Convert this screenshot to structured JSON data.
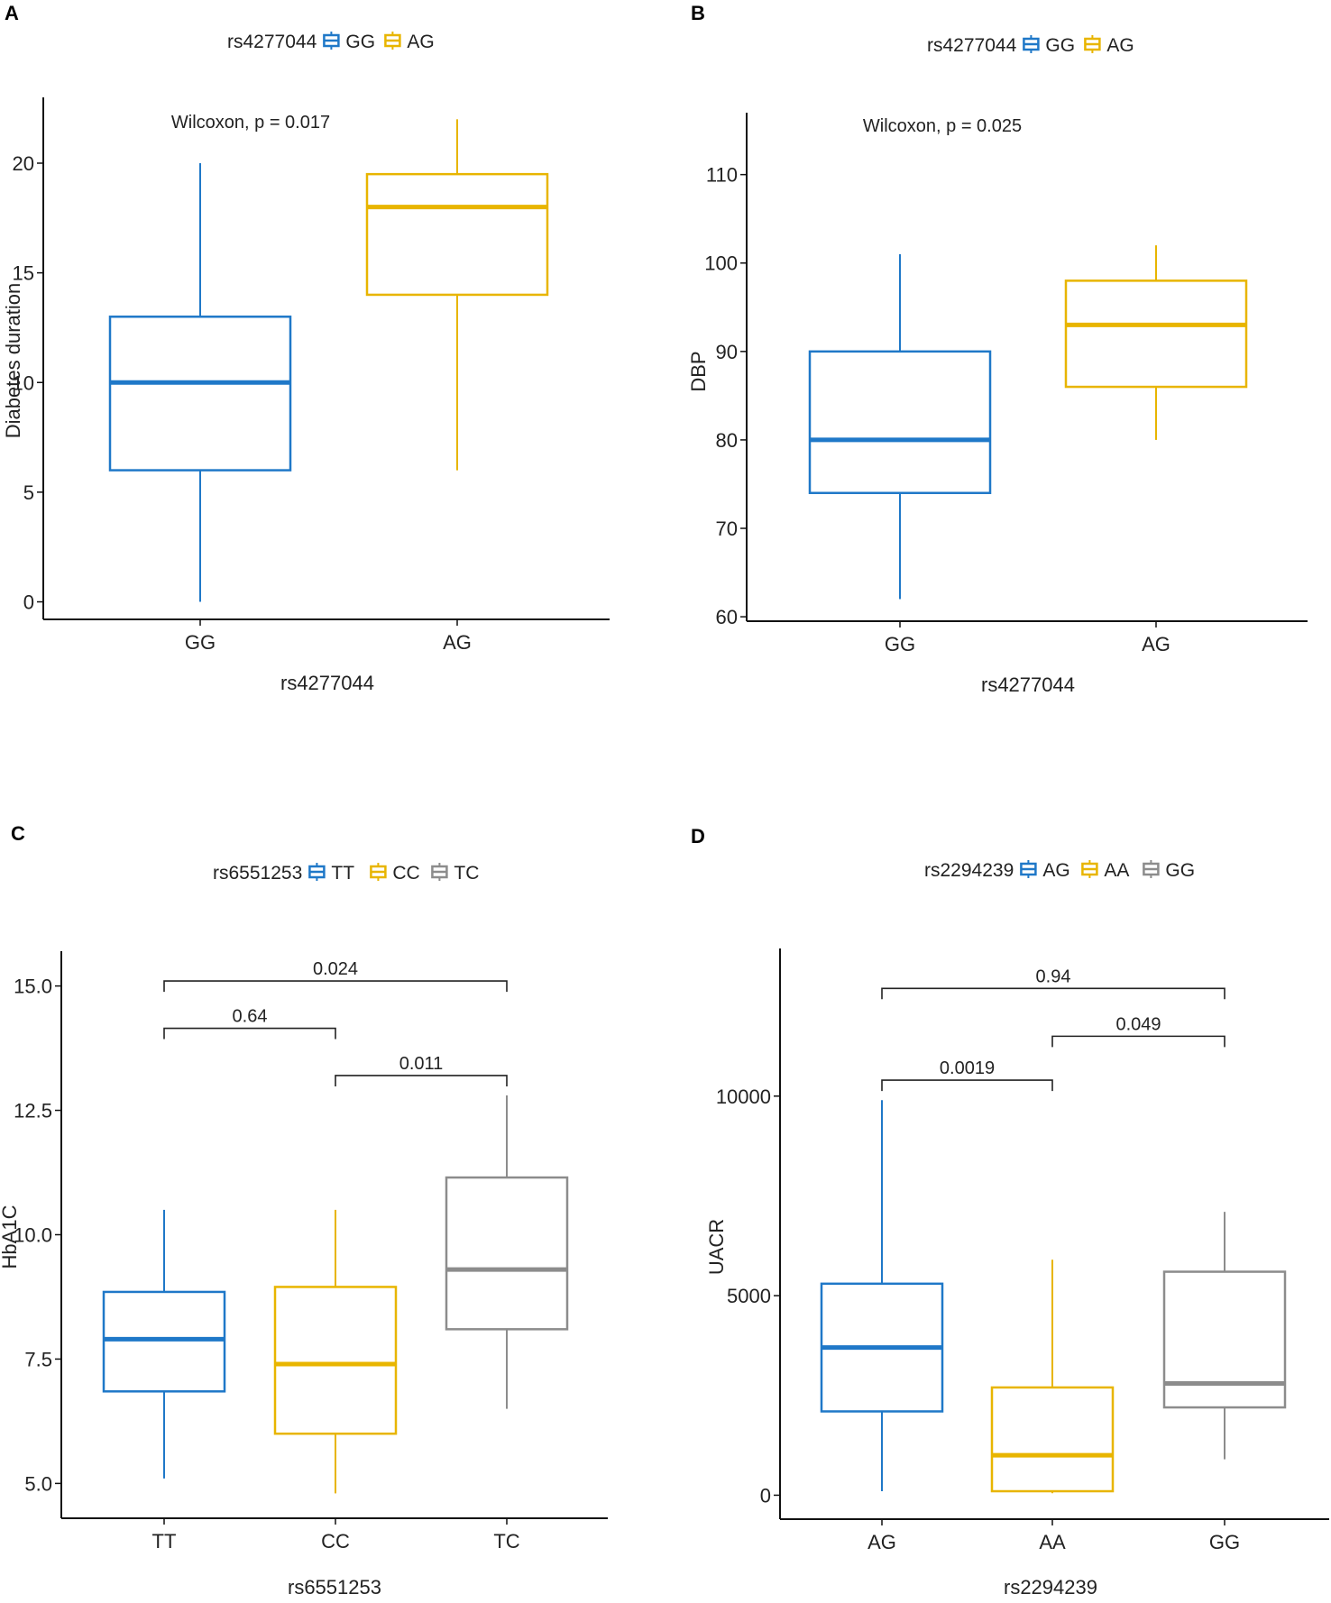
{
  "colors": {
    "blue": "#1f78c8",
    "yellow": "#e8b500",
    "gray": "#8c8c8c"
  },
  "panels": [
    {
      "label": "A",
      "legend_title": "rs4277044",
      "groups": [
        "GG",
        "AG"
      ],
      "annotation": "Wilcoxon, p = 0.017",
      "chart_data": {
        "type": "box",
        "xlabel": "rs4277044",
        "ylabel": "Diabetes duration",
        "categories": [
          "GG",
          "AG"
        ],
        "yticks": [
          0,
          5,
          10,
          15,
          20
        ],
        "ylim": [
          -0.8,
          23
        ],
        "boxes": [
          {
            "name": "GG",
            "color": "blue",
            "min": 0,
            "q1": 6,
            "median": 10,
            "q3": 13,
            "max": 20
          },
          {
            "name": "AG",
            "color": "yellow",
            "min": 6,
            "q1": 14,
            "median": 18,
            "q3": 19.5,
            "max": 22
          }
        ],
        "comparisons": []
      }
    },
    {
      "label": "B",
      "legend_title": "rs4277044",
      "groups": [
        "GG",
        "AG"
      ],
      "annotation": "Wilcoxon, p = 0.025",
      "chart_data": {
        "type": "box",
        "xlabel": "rs4277044",
        "ylabel": "DBP",
        "categories": [
          "GG",
          "AG"
        ],
        "yticks": [
          60,
          70,
          80,
          90,
          100,
          110
        ],
        "ylim": [
          59.5,
          117
        ],
        "boxes": [
          {
            "name": "GG",
            "color": "blue",
            "min": 62,
            "q1": 74,
            "median": 80,
            "q3": 90,
            "max": 101
          },
          {
            "name": "AG",
            "color": "yellow",
            "min": 80,
            "q1": 86,
            "median": 93,
            "q3": 98,
            "max": 102
          }
        ],
        "comparisons": []
      }
    },
    {
      "label": "C",
      "legend_title": "rs6551253",
      "groups": [
        "TT",
        "CC",
        "TC"
      ],
      "annotation": "",
      "chart_data": {
        "type": "box",
        "xlabel": "rs6551253",
        "ylabel": "HbA1C",
        "categories": [
          "TT",
          "CC",
          "TC"
        ],
        "yticks": [
          "5.0",
          "7.5",
          "10.0",
          "12.5",
          "15.0"
        ],
        "ylim": [
          4.3,
          15.7
        ],
        "boxes": [
          {
            "name": "TT",
            "color": "blue",
            "min": 5.1,
            "q1": 6.85,
            "median": 7.9,
            "q3": 8.85,
            "max": 10.5
          },
          {
            "name": "CC",
            "color": "yellow",
            "min": 4.8,
            "q1": 6.0,
            "median": 7.4,
            "q3": 8.95,
            "max": 10.5
          },
          {
            "name": "TC",
            "color": "gray",
            "min": 6.5,
            "q1": 8.1,
            "median": 9.3,
            "q3": 11.15,
            "max": 12.8
          }
        ],
        "comparisons": [
          {
            "from": 0,
            "to": 2,
            "y": 15.1,
            "label": "0.024"
          },
          {
            "from": 0,
            "to": 1,
            "y": 14.15,
            "label": "0.64"
          },
          {
            "from": 1,
            "to": 2,
            "y": 13.2,
            "label": "0.011"
          }
        ]
      }
    },
    {
      "label": "D",
      "legend_title": "rs2294239",
      "groups": [
        "AG",
        "AA",
        "GG"
      ],
      "annotation": "",
      "chart_data": {
        "type": "box",
        "xlabel": "rs2294239",
        "ylabel": "UACR",
        "categories": [
          "AG",
          "AA",
          "GG"
        ],
        "yticks": [
          0,
          5000,
          10000
        ],
        "ylim": [
          -600,
          13700
        ],
        "boxes": [
          {
            "name": "AG",
            "color": "blue",
            "min": 100,
            "q1": 2100,
            "median": 3700,
            "q3": 5300,
            "max": 9900
          },
          {
            "name": "AA",
            "color": "yellow",
            "min": 50,
            "q1": 100,
            "median": 1000,
            "q3": 2700,
            "max": 5900
          },
          {
            "name": "GG",
            "color": "gray",
            "min": 900,
            "q1": 2200,
            "median": 2800,
            "q3": 5600,
            "max": 7100
          }
        ],
        "comparisons": [
          {
            "from": 0,
            "to": 2,
            "y": 12700,
            "label": "0.94"
          },
          {
            "from": 1,
            "to": 2,
            "y": 11500,
            "label": "0.049"
          },
          {
            "from": 0,
            "to": 1,
            "y": 10400,
            "label": "0.0019"
          }
        ]
      }
    }
  ]
}
